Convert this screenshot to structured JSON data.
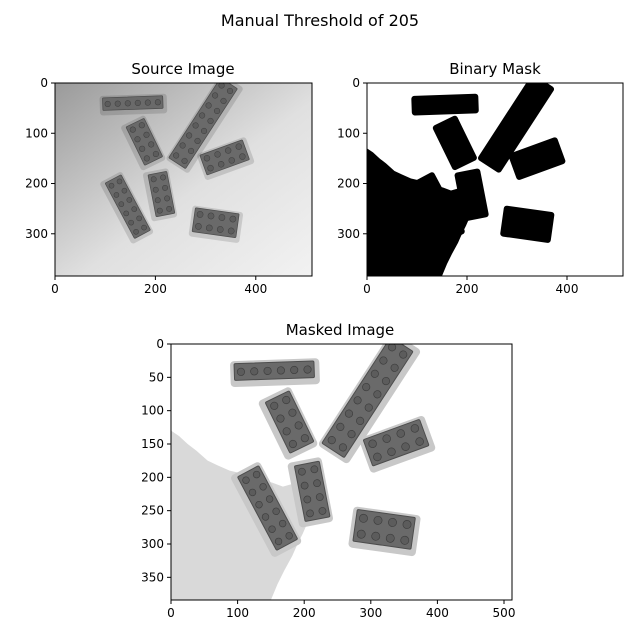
{
  "figure": {
    "suptitle": "Manual Threshold of 205"
  },
  "chart_data": [
    {
      "type": "image",
      "title": "Source Image",
      "image_style": "grayscale photo of scattered LEGO bricks on a white surface",
      "xlim": [
        0,
        512
      ],
      "ylim": [
        384,
        0
      ],
      "xticks": [
        0,
        200,
        400
      ],
      "yticks": [
        0,
        100,
        200,
        300
      ],
      "background_gradient": [
        "#9a9a9a",
        "#f2f2f2"
      ],
      "brick_color": "#6a6a6a"
    },
    {
      "type": "image",
      "title": "Binary Mask",
      "image_style": "black-and-white mask: black where pixel < 205",
      "threshold": 205,
      "xlim": [
        0,
        512
      ],
      "ylim": [
        384,
        0
      ],
      "xticks": [
        0,
        200,
        400
      ],
      "yticks": [
        0,
        100,
        200,
        300
      ],
      "mask_color": "#000000",
      "background_color": "#ffffff"
    },
    {
      "type": "image",
      "title": "Masked Image",
      "image_style": "source image with masked (bright) pixels set to white",
      "xlim": [
        0,
        512
      ],
      "ylim": [
        384,
        0
      ],
      "xticks": [
        0,
        100,
        200,
        300,
        400,
        500
      ],
      "yticks": [
        0,
        50,
        100,
        150,
        200,
        250,
        300,
        350
      ]
    }
  ],
  "bricks": [
    {
      "cx": 155,
      "cy": 40,
      "len": 120,
      "wid": 25,
      "angle": -2,
      "studs_x": 6,
      "studs_y": 1
    },
    {
      "cx": 178,
      "cy": 117,
      "len": 85,
      "wid": 40,
      "angle": 64,
      "studs_x": 4,
      "studs_y": 2
    },
    {
      "cx": 295,
      "cy": 80,
      "len": 190,
      "wid": 40,
      "angle": -57,
      "studs_x": 8,
      "studs_y": 2
    },
    {
      "cx": 338,
      "cy": 148,
      "len": 90,
      "wid": 42,
      "angle": -20,
      "studs_x": 4,
      "studs_y": 2
    },
    {
      "cx": 145,
      "cy": 246,
      "len": 125,
      "wid": 36,
      "angle": 62,
      "studs_x": 6,
      "studs_y": 2
    },
    {
      "cx": 212,
      "cy": 221,
      "len": 85,
      "wid": 38,
      "angle": 79,
      "studs_x": 4,
      "studs_y": 2
    },
    {
      "cx": 320,
      "cy": 278,
      "len": 88,
      "wid": 48,
      "angle": 8,
      "studs_x": 4,
      "studs_y": 2
    }
  ],
  "mask_region": [
    [
      0,
      130
    ],
    [
      12,
      138
    ],
    [
      25,
      150
    ],
    [
      38,
      160
    ],
    [
      55,
      175
    ],
    [
      70,
      182
    ],
    [
      88,
      190
    ],
    [
      110,
      195
    ],
    [
      125,
      198
    ],
    [
      140,
      205
    ],
    [
      152,
      208
    ],
    [
      168,
      214
    ],
    [
      182,
      210
    ],
    [
      196,
      198
    ],
    [
      208,
      203
    ],
    [
      218,
      228
    ],
    [
      215,
      250
    ],
    [
      205,
      268
    ],
    [
      198,
      284
    ],
    [
      190,
      300
    ],
    [
      182,
      318
    ],
    [
      170,
      340
    ],
    [
      160,
      360
    ],
    [
      150,
      384
    ],
    [
      0,
      384
    ]
  ]
}
